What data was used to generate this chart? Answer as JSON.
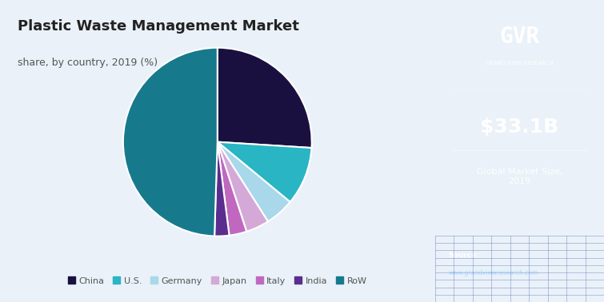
{
  "title": "Plastic Waste Management Market",
  "subtitle": "share, by country, 2019 (%)",
  "labels": [
    "China",
    "U.S.",
    "Germany",
    "Japan",
    "Italy",
    "India",
    "RoW"
  ],
  "values": [
    26,
    10,
    5,
    4,
    3,
    2.5,
    49.5
  ],
  "colors": [
    "#1a1040",
    "#29b5c3",
    "#a8d8ea",
    "#d4a9d8",
    "#c068c0",
    "#5b2d8e",
    "#177a8c"
  ],
  "bg_color": "#eaf1f8",
  "right_panel_color": "#2d1f4e",
  "market_size_text": "$33.1B",
  "market_size_label": "Global Market Size,\n2019",
  "legend_label_color": "#555555",
  "start_angle": 90,
  "top_bar_color": "#29b5e8",
  "source_text": "Source:",
  "source_url": "www.grandviewresearch.com",
  "gvr_label": "GRAND VIEW RESEARCH"
}
